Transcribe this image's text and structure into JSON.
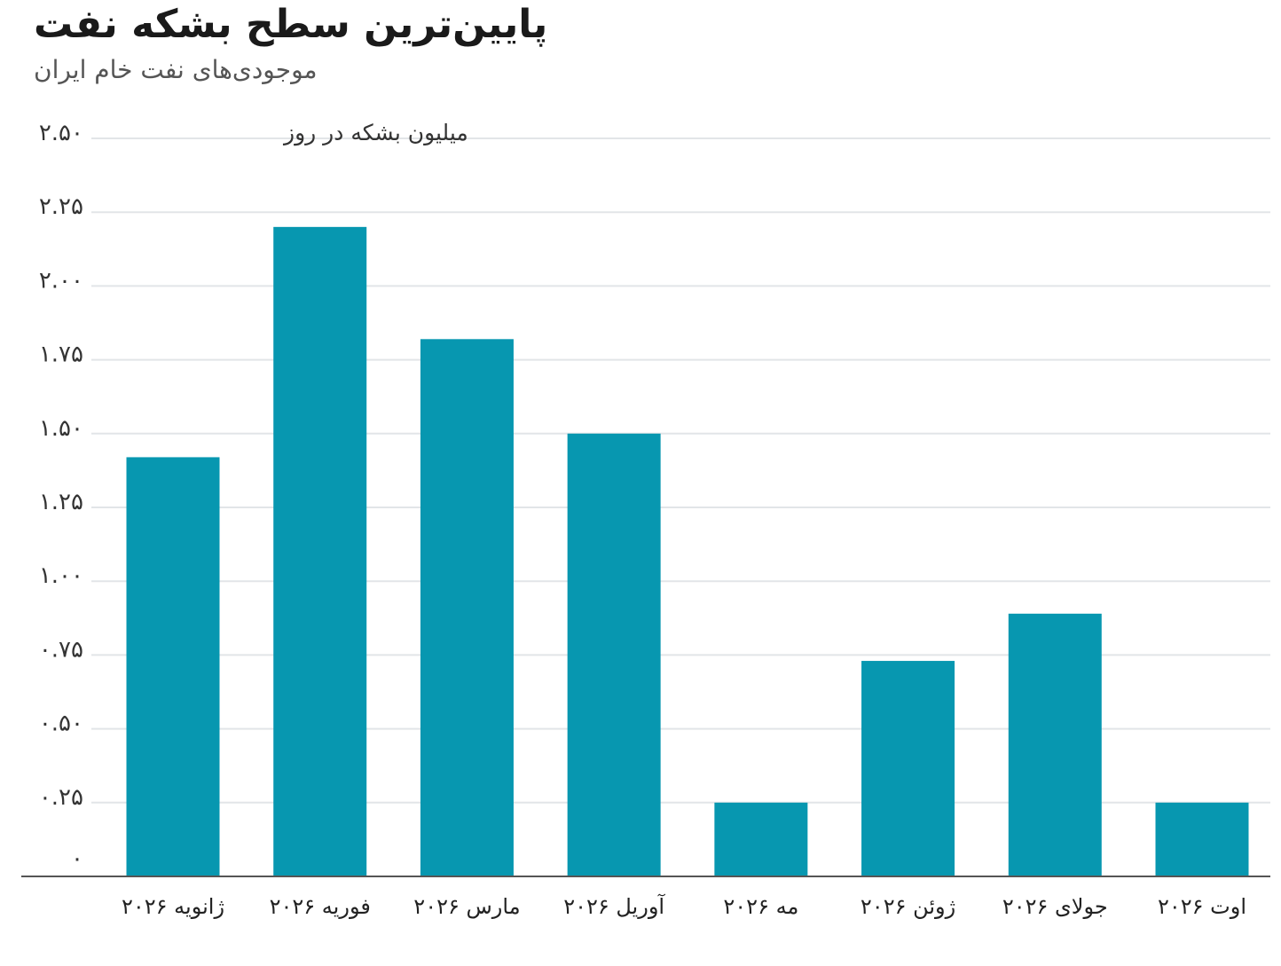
{
  "title": "پایین‌ترین سطح بشکه نفت",
  "subtitle": "موجودی‌های نفت خام ایران",
  "colors": {
    "bar": "#0797b0",
    "grid": "#e2e5e8",
    "axis": "#555555"
  },
  "chart_data": {
    "type": "bar",
    "title": "پایین‌ترین سطح بشکه نفت",
    "subtitle": "موجودی‌های نفت خام ایران",
    "ylabel": "میلیون بشکه در روز",
    "ylim": [
      0,
      2.5
    ],
    "yticks": [
      0,
      0.25,
      0.5,
      0.75,
      1.0,
      1.25,
      1.5,
      1.75,
      2.0,
      2.25,
      2.5
    ],
    "ytick_labels": [
      "۰",
      "۰.۲۵",
      "۰.۵۰",
      "۰.۷۵",
      "۱.۰۰",
      "۱.۲۵",
      "۱.۵۰",
      "۱.۷۵",
      "۲.۰۰",
      "۲.۲۵",
      "۲.۵۰"
    ],
    "categories": [
      "ژانویه ۲۰۲۶",
      "فوریه ۲۰۲۶",
      "مارس ۲۰۲۶",
      "آوریل ۲۰۲۶",
      "مه ۲۰۲۶",
      "ژوئن ۲۰۲۶",
      "جولای ۲۰۲۶",
      "اوت ۲۰۲۶"
    ],
    "values": [
      1.42,
      2.2,
      1.82,
      1.5,
      0.25,
      0.73,
      0.89,
      0.25
    ],
    "grid": true,
    "legend": "none"
  }
}
